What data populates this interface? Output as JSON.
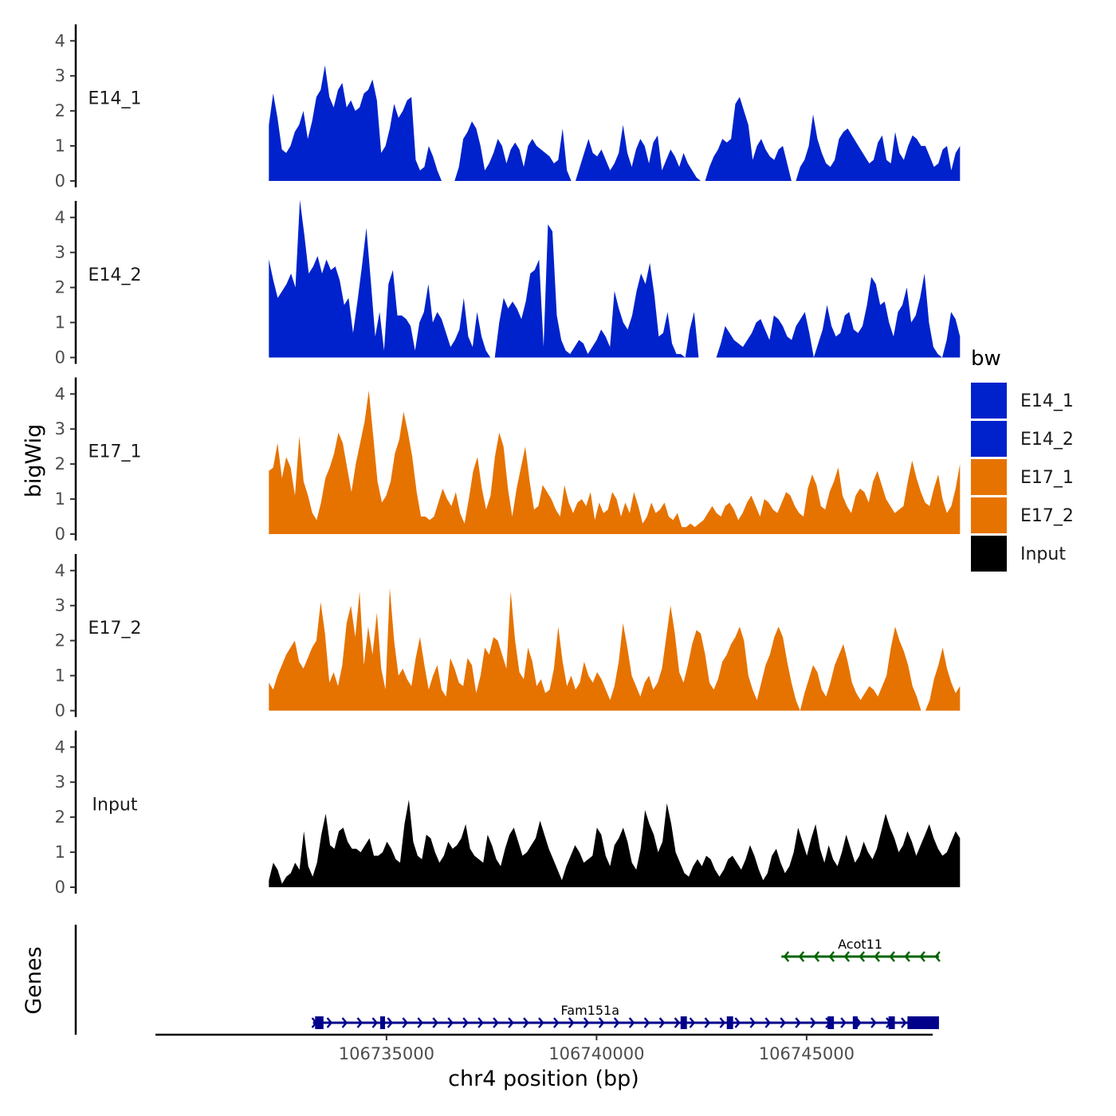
{
  "chart_data": {
    "type": "area",
    "chromosome": "chr4",
    "xlabel": "chr4 position (bp)",
    "ylabel": "bigWig",
    "genes_label": "Genes",
    "xlim": [
      106729500,
      106748000
    ],
    "xticks": [
      {
        "value": 106735000,
        "label": "106735000"
      },
      {
        "value": 106740000,
        "label": "106740000"
      },
      {
        "value": 106745000,
        "label": "106745000"
      }
    ],
    "ylim": [
      0,
      4.7
    ],
    "yticks": [
      {
        "value": 0,
        "label": "0"
      },
      {
        "value": 1,
        "label": "1"
      },
      {
        "value": 2,
        "label": "2"
      },
      {
        "value": 3,
        "label": "3"
      },
      {
        "value": 4,
        "label": "4"
      }
    ],
    "track_start": 106732200,
    "track_end": 106748650,
    "legend": {
      "title": "bw",
      "entries": [
        {
          "name": "E14_1",
          "color": "#0022cc"
        },
        {
          "name": "E14_2",
          "color": "#0022cc"
        },
        {
          "name": "E17_1",
          "color": "#e67300"
        },
        {
          "name": "E17_2",
          "color": "#e67300"
        },
        {
          "name": "Input",
          "color": "#000000"
        }
      ]
    },
    "series": [
      {
        "name": "E14_1",
        "color": "#0022cc",
        "values": [
          1.6,
          2.5,
          1.8,
          0.9,
          0.8,
          1.0,
          1.4,
          1.6,
          2.0,
          1.2,
          1.7,
          2.4,
          2.6,
          3.3,
          2.4,
          2.1,
          2.6,
          2.8,
          2.1,
          2.3,
          2.0,
          2.1,
          2.5,
          2.6,
          2.9,
          2.3,
          0.8,
          1.0,
          1.5,
          2.2,
          1.8,
          2.0,
          2.3,
          2.4,
          0.6,
          0.3,
          0.4,
          1.0,
          0.7,
          0.3,
          0.0,
          0.0,
          0.0,
          0.0,
          0.4,
          1.2,
          1.4,
          1.7,
          1.5,
          1.0,
          0.3,
          0.5,
          0.8,
          1.2,
          1.0,
          0.5,
          0.9,
          1.1,
          0.9,
          0.4,
          1.0,
          1.2,
          1.0,
          0.9,
          0.8,
          0.7,
          0.5,
          0.6,
          1.5,
          0.3,
          0.0,
          0.0,
          0.4,
          0.8,
          1.2,
          0.8,
          0.7,
          0.9,
          0.6,
          0.3,
          0.5,
          0.8,
          1.6,
          0.8,
          0.4,
          0.9,
          1.2,
          1.0,
          0.5,
          1.1,
          1.3,
          0.3,
          0.6,
          0.9,
          0.7,
          0.4,
          0.8,
          0.5,
          0.3,
          0.1,
          0.0,
          0.0,
          0.4,
          0.7,
          0.9,
          1.2,
          1.1,
          1.2,
          2.2,
          2.4,
          2.0,
          1.6,
          0.6,
          1.0,
          1.2,
          0.9,
          0.7,
          0.6,
          0.9,
          1.0,
          0.5,
          0.0,
          0.0,
          0.4,
          0.6,
          1.0,
          1.9,
          1.2,
          0.8,
          0.5,
          0.4,
          0.6,
          1.2,
          1.4,
          1.5,
          1.3,
          1.1,
          0.9,
          0.7,
          0.5,
          0.6,
          1.1,
          1.3,
          0.6,
          0.5,
          1.4,
          0.8,
          0.6,
          1.0,
          1.3,
          1.2,
          1.0,
          1.0,
          0.7,
          0.4,
          0.5,
          0.9,
          1.0,
          0.3,
          0.8,
          1.0
        ]
      },
      {
        "name": "E14_2",
        "color": "#0022cc",
        "values": [
          2.8,
          2.2,
          1.7,
          1.9,
          2.1,
          2.4,
          2.0,
          4.5,
          3.5,
          2.4,
          2.6,
          2.9,
          2.4,
          2.8,
          2.5,
          2.6,
          2.2,
          1.5,
          1.7,
          0.7,
          1.6,
          2.6,
          3.7,
          2.2,
          0.6,
          1.3,
          0.2,
          2.1,
          2.5,
          1.2,
          1.2,
          1.1,
          0.9,
          0.2,
          1.0,
          1.3,
          2.1,
          1.0,
          1.3,
          1.1,
          0.7,
          0.3,
          0.5,
          0.8,
          1.7,
          0.6,
          0.3,
          1.3,
          0.6,
          0.2,
          0.0,
          0.0,
          1.0,
          1.7,
          1.4,
          1.6,
          1.4,
          1.1,
          1.6,
          2.4,
          2.5,
          2.8,
          0.3,
          3.8,
          3.6,
          1.2,
          0.5,
          0.2,
          0.1,
          0.3,
          0.5,
          0.4,
          0.1,
          0.3,
          0.5,
          0.8,
          0.6,
          0.3,
          1.9,
          1.4,
          1.0,
          0.8,
          1.2,
          1.9,
          2.4,
          2.1,
          2.7,
          1.8,
          0.6,
          0.7,
          1.3,
          0.4,
          0.1,
          0.1,
          0.0,
          0.8,
          1.3,
          0.0,
          0.0,
          0.0,
          0.0,
          0.0,
          0.4,
          0.9,
          0.7,
          0.5,
          0.4,
          0.3,
          0.5,
          0.7,
          1.0,
          1.1,
          0.8,
          0.5,
          1.2,
          1.1,
          0.9,
          0.6,
          0.5,
          0.9,
          1.1,
          1.3,
          0.7,
          0.0,
          0.4,
          0.8,
          1.5,
          0.9,
          0.6,
          0.7,
          1.2,
          1.3,
          0.8,
          0.7,
          0.9,
          1.5,
          2.3,
          2.1,
          1.5,
          1.6,
          1.0,
          0.6,
          1.3,
          1.5,
          2.0,
          1.0,
          1.2,
          1.7,
          2.4,
          1.0,
          0.3,
          0.1,
          0.0,
          0.5,
          1.3,
          1.1,
          0.6
        ]
      },
      {
        "name": "E17_1",
        "color": "#e67300",
        "values": [
          1.8,
          1.9,
          2.6,
          1.6,
          2.2,
          1.9,
          1.1,
          2.8,
          1.5,
          1.1,
          0.6,
          0.4,
          0.9,
          1.6,
          1.9,
          2.3,
          2.9,
          2.6,
          1.9,
          1.2,
          2.0,
          2.6,
          3.2,
          4.1,
          2.8,
          1.5,
          0.9,
          1.1,
          1.5,
          2.3,
          2.7,
          3.5,
          2.9,
          2.2,
          1.2,
          0.5,
          0.5,
          0.4,
          0.5,
          0.9,
          1.3,
          1.0,
          0.8,
          1.2,
          0.6,
          0.3,
          1.0,
          1.8,
          2.2,
          1.3,
          0.7,
          1.1,
          2.2,
          2.9,
          2.5,
          1.3,
          0.5,
          1.3,
          1.9,
          2.5,
          1.5,
          0.7,
          0.8,
          1.4,
          1.2,
          1.0,
          0.7,
          0.5,
          1.4,
          0.9,
          0.6,
          0.9,
          1.0,
          0.8,
          1.2,
          0.4,
          0.9,
          0.6,
          0.7,
          1.2,
          1.0,
          0.5,
          0.9,
          0.6,
          1.2,
          0.8,
          0.3,
          0.5,
          0.9,
          0.6,
          0.7,
          0.9,
          0.5,
          0.4,
          0.6,
          0.2,
          0.2,
          0.3,
          0.2,
          0.3,
          0.4,
          0.6,
          0.8,
          0.6,
          0.5,
          0.8,
          0.9,
          0.7,
          0.4,
          0.6,
          0.9,
          1.1,
          0.8,
          0.5,
          1.0,
          0.9,
          0.7,
          0.6,
          0.9,
          1.2,
          1.1,
          0.8,
          0.6,
          0.5,
          1.3,
          1.7,
          1.4,
          0.8,
          0.7,
          1.2,
          1.5,
          1.9,
          1.1,
          0.8,
          0.6,
          1.1,
          1.3,
          1.2,
          0.9,
          1.5,
          1.8,
          1.4,
          1.0,
          0.8,
          0.6,
          0.7,
          0.8,
          1.5,
          2.1,
          1.6,
          1.2,
          0.9,
          0.8,
          1.3,
          1.7,
          1.0,
          0.6,
          0.8,
          1.3,
          2.0
        ]
      },
      {
        "name": "E17_2",
        "color": "#e67300",
        "values": [
          0.8,
          0.6,
          1.0,
          1.3,
          1.6,
          1.8,
          2.0,
          1.4,
          1.2,
          1.5,
          1.8,
          2.0,
          3.1,
          2.2,
          0.8,
          1.1,
          0.7,
          1.3,
          2.5,
          3.0,
          2.1,
          3.4,
          1.3,
          2.4,
          1.6,
          2.8,
          1.2,
          0.6,
          3.5,
          2.0,
          1.0,
          1.2,
          0.9,
          0.7,
          1.5,
          2.1,
          1.3,
          0.6,
          1.0,
          1.3,
          0.6,
          0.4,
          1.5,
          1.2,
          0.8,
          0.7,
          1.5,
          1.3,
          0.5,
          1.0,
          1.8,
          1.6,
          2.1,
          2.0,
          1.6,
          1.2,
          3.4,
          2.0,
          1.1,
          0.9,
          1.8,
          1.4,
          0.7,
          0.9,
          0.5,
          0.6,
          1.2,
          2.4,
          1.4,
          0.7,
          1.0,
          0.6,
          0.8,
          1.4,
          1.0,
          0.8,
          1.1,
          0.9,
          0.6,
          0.3,
          0.7,
          1.4,
          2.5,
          1.8,
          1.0,
          0.7,
          0.4,
          0.8,
          1.0,
          0.6,
          0.8,
          1.2,
          2.1,
          3.0,
          2.2,
          1.1,
          0.8,
          1.3,
          1.9,
          2.3,
          2.2,
          1.6,
          0.8,
          0.6,
          0.9,
          1.4,
          1.6,
          1.9,
          2.1,
          2.4,
          2.0,
          1.0,
          0.6,
          0.3,
          0.8,
          1.3,
          1.6,
          2.1,
          2.4,
          2.1,
          1.4,
          0.8,
          0.3,
          0.0,
          0.5,
          0.9,
          1.3,
          1.1,
          0.6,
          0.4,
          0.8,
          1.3,
          1.6,
          1.9,
          1.4,
          0.8,
          0.5,
          0.3,
          0.5,
          0.7,
          0.6,
          0.4,
          0.7,
          1.0,
          1.8,
          2.4,
          2.0,
          1.7,
          1.3,
          0.7,
          0.4,
          0.0,
          0.0,
          0.3,
          0.9,
          1.3,
          1.8,
          1.2,
          0.8,
          0.5,
          0.7
        ]
      },
      {
        "name": "Input",
        "color": "#000000",
        "values": [
          0.2,
          0.7,
          0.5,
          0.1,
          0.3,
          0.4,
          0.7,
          0.5,
          1.6,
          0.6,
          0.3,
          0.7,
          1.5,
          2.1,
          1.2,
          1.1,
          1.6,
          1.7,
          1.3,
          1.1,
          1.1,
          1.0,
          1.2,
          1.4,
          0.9,
          0.9,
          1.0,
          1.3,
          1.1,
          0.8,
          0.7,
          1.8,
          2.5,
          1.3,
          0.9,
          0.8,
          1.5,
          1.4,
          1.0,
          0.7,
          0.9,
          1.3,
          1.1,
          1.2,
          1.4,
          1.8,
          1.1,
          0.9,
          0.8,
          0.7,
          1.5,
          1.2,
          0.8,
          0.6,
          1.1,
          1.5,
          1.7,
          1.3,
          0.9,
          1.0,
          1.2,
          1.4,
          1.9,
          1.5,
          1.1,
          0.8,
          0.5,
          0.2,
          0.6,
          0.9,
          1.2,
          1.0,
          0.7,
          0.8,
          0.9,
          1.7,
          1.5,
          0.9,
          0.6,
          1.2,
          1.4,
          1.7,
          1.3,
          0.7,
          0.5,
          1.1,
          2.2,
          1.8,
          1.5,
          1.0,
          1.3,
          2.4,
          1.8,
          1.0,
          0.7,
          0.4,
          0.3,
          0.6,
          0.8,
          0.6,
          0.9,
          0.8,
          0.5,
          0.3,
          0.5,
          0.8,
          0.9,
          0.7,
          0.5,
          0.8,
          1.2,
          0.9,
          0.5,
          0.2,
          0.4,
          0.9,
          1.1,
          0.7,
          0.4,
          0.6,
          1.0,
          1.7,
          1.3,
          0.9,
          1.4,
          1.8,
          1.1,
          0.7,
          1.2,
          0.8,
          0.6,
          1.0,
          1.5,
          1.1,
          0.7,
          0.9,
          1.3,
          1.0,
          0.8,
          1.1,
          1.6,
          2.1,
          1.7,
          1.4,
          1.0,
          1.2,
          1.6,
          1.3,
          0.9,
          1.2,
          1.5,
          1.8,
          1.4,
          1.1,
          0.9,
          1.0,
          1.3,
          1.6,
          1.4
        ]
      }
    ],
    "genes": [
      {
        "name": "Acot11",
        "strand": "-",
        "color": "#006400",
        "start": 106744400,
        "end": 106748150,
        "exons": []
      },
      {
        "name": "Fam151a",
        "strand": "+",
        "color": "#00008b",
        "start": 106733250,
        "end": 106748150,
        "exons": [
          [
            106733300,
            106733500
          ],
          [
            106734850,
            106734950
          ],
          [
            106742000,
            106742150
          ],
          [
            106743100,
            106743250
          ],
          [
            106745500,
            106745650
          ],
          [
            106746100,
            106746200
          ],
          [
            106746950,
            106747100
          ],
          [
            106747400,
            106748150
          ]
        ]
      }
    ]
  }
}
